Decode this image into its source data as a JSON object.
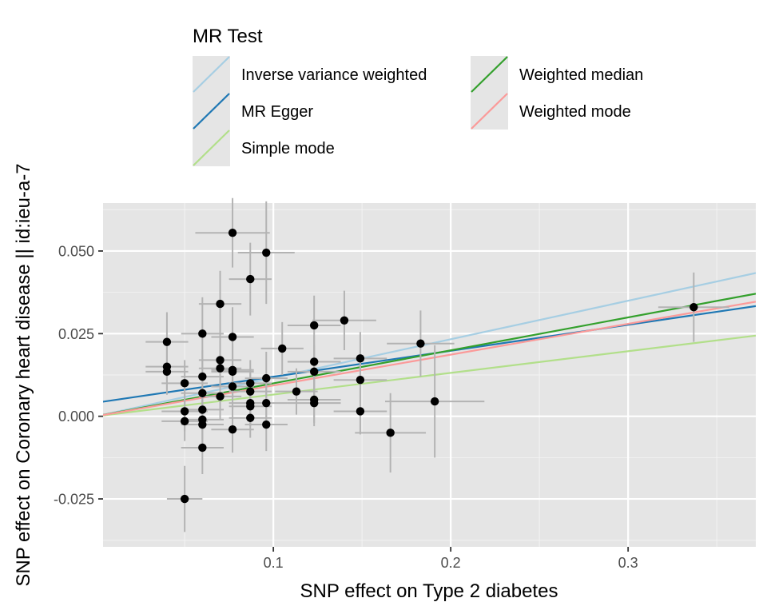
{
  "chart_data": {
    "type": "scatter",
    "xlabel": "SNP effect on Type 2 diabetes",
    "ylabel": "SNP effect on Coronary heart disease || id:ieu-a-7",
    "xlim": [
      0.004,
      0.372
    ],
    "ylim": [
      -0.0395,
      0.0645
    ],
    "x_ticks": [
      0.1,
      0.2,
      0.3
    ],
    "x_tick_labels": [
      "0.1",
      "0.2",
      "0.3"
    ],
    "y_ticks": [
      -0.025,
      0.0,
      0.025,
      0.05
    ],
    "y_tick_labels": [
      "-0.025",
      "0.000",
      "0.025",
      "0.050"
    ],
    "grid": true,
    "legend": {
      "title": "MR Test",
      "position": "top",
      "entries": [
        {
          "name": "Inverse variance weighted",
          "color": "#a6cee3"
        },
        {
          "name": "MR Egger",
          "color": "#1f78b4"
        },
        {
          "name": "Simple mode",
          "color": "#b2df8a"
        },
        {
          "name": "Weighted median",
          "color": "#33a02c"
        },
        {
          "name": "Weighted mode",
          "color": "#fb9a99"
        }
      ]
    },
    "lines": [
      {
        "name": "Inverse variance weighted",
        "color": "#a6cee3",
        "intercept": 0.0,
        "slope": 0.1165
      },
      {
        "name": "MR Egger",
        "color": "#1f78b4",
        "intercept": 0.0041,
        "slope": 0.0786
      },
      {
        "name": "Simple mode",
        "color": "#b2df8a",
        "intercept": 0.0,
        "slope": 0.0656
      },
      {
        "name": "Weighted median",
        "color": "#33a02c",
        "intercept": 0.0,
        "slope": 0.0997
      },
      {
        "name": "Weighted mode",
        "color": "#fb9a99",
        "intercept": 0.0,
        "slope": 0.0932
      }
    ],
    "points": [
      {
        "x": 0.04,
        "y": 0.0225,
        "xerr": 0.012,
        "yerr": 0.009
      },
      {
        "x": 0.04,
        "y": 0.015,
        "xerr": 0.012,
        "yerr": 0.007
      },
      {
        "x": 0.04,
        "y": 0.0135,
        "xerr": 0.012,
        "yerr": 0.007
      },
      {
        "x": 0.05,
        "y": 0.01,
        "xerr": 0.013,
        "yerr": 0.007
      },
      {
        "x": 0.05,
        "y": 0.0015,
        "xerr": 0.013,
        "yerr": 0.006
      },
      {
        "x": 0.05,
        "y": -0.0015,
        "xerr": 0.013,
        "yerr": 0.006
      },
      {
        "x": 0.05,
        "y": -0.025,
        "xerr": 0.01,
        "yerr": 0.01
      },
      {
        "x": 0.06,
        "y": 0.025,
        "xerr": 0.012,
        "yerr": 0.011
      },
      {
        "x": 0.06,
        "y": 0.012,
        "xerr": 0.012,
        "yerr": 0.008
      },
      {
        "x": 0.06,
        "y": 0.007,
        "xerr": 0.012,
        "yerr": 0.006
      },
      {
        "x": 0.06,
        "y": 0.002,
        "xerr": 0.012,
        "yerr": 0.006
      },
      {
        "x": 0.06,
        "y": -0.001,
        "xerr": 0.012,
        "yerr": 0.006
      },
      {
        "x": 0.06,
        "y": -0.0025,
        "xerr": 0.012,
        "yerr": 0.006
      },
      {
        "x": 0.06,
        "y": -0.0095,
        "xerr": 0.012,
        "yerr": 0.008
      },
      {
        "x": 0.07,
        "y": 0.034,
        "xerr": 0.012,
        "yerr": 0.01
      },
      {
        "x": 0.07,
        "y": 0.017,
        "xerr": 0.012,
        "yerr": 0.008
      },
      {
        "x": 0.07,
        "y": 0.0145,
        "xerr": 0.012,
        "yerr": 0.008
      },
      {
        "x": 0.07,
        "y": 0.006,
        "xerr": 0.012,
        "yerr": 0.007
      },
      {
        "x": 0.077,
        "y": 0.0555,
        "xerr": 0.021,
        "yerr": 0.0105
      },
      {
        "x": 0.077,
        "y": 0.024,
        "xerr": 0.012,
        "yerr": 0.009
      },
      {
        "x": 0.077,
        "y": 0.014,
        "xerr": 0.012,
        "yerr": 0.008
      },
      {
        "x": 0.077,
        "y": 0.0135,
        "xerr": 0.012,
        "yerr": 0.008
      },
      {
        "x": 0.077,
        "y": 0.009,
        "xerr": 0.012,
        "yerr": 0.007
      },
      {
        "x": 0.077,
        "y": -0.004,
        "xerr": 0.012,
        "yerr": 0.007
      },
      {
        "x": 0.087,
        "y": 0.0415,
        "xerr": 0.012,
        "yerr": 0.011
      },
      {
        "x": 0.087,
        "y": 0.01,
        "xerr": 0.012,
        "yerr": 0.007
      },
      {
        "x": 0.087,
        "y": 0.0075,
        "xerr": 0.012,
        "yerr": 0.007
      },
      {
        "x": 0.087,
        "y": 0.004,
        "xerr": 0.012,
        "yerr": 0.007
      },
      {
        "x": 0.087,
        "y": 0.003,
        "xerr": 0.012,
        "yerr": 0.006
      },
      {
        "x": 0.087,
        "y": -0.0005,
        "xerr": 0.012,
        "yerr": 0.006
      },
      {
        "x": 0.096,
        "y": 0.0495,
        "xerr": 0.016,
        "yerr": 0.0155
      },
      {
        "x": 0.096,
        "y": 0.0115,
        "xerr": 0.012,
        "yerr": 0.008
      },
      {
        "x": 0.096,
        "y": 0.004,
        "xerr": 0.012,
        "yerr": 0.007
      },
      {
        "x": 0.096,
        "y": -0.0025,
        "xerr": 0.012,
        "yerr": 0.008
      },
      {
        "x": 0.105,
        "y": 0.0205,
        "xerr": 0.012,
        "yerr": 0.008
      },
      {
        "x": 0.113,
        "y": 0.0075,
        "xerr": 0.012,
        "yerr": 0.007
      },
      {
        "x": 0.123,
        "y": 0.0275,
        "xerr": 0.015,
        "yerr": 0.009
      },
      {
        "x": 0.123,
        "y": 0.0165,
        "xerr": 0.015,
        "yerr": 0.008
      },
      {
        "x": 0.123,
        "y": 0.0135,
        "xerr": 0.015,
        "yerr": 0.008
      },
      {
        "x": 0.123,
        "y": 0.005,
        "xerr": 0.015,
        "yerr": 0.007
      },
      {
        "x": 0.123,
        "y": 0.004,
        "xerr": 0.015,
        "yerr": 0.007
      },
      {
        "x": 0.14,
        "y": 0.029,
        "xerr": 0.018,
        "yerr": 0.009
      },
      {
        "x": 0.149,
        "y": 0.0175,
        "xerr": 0.015,
        "yerr": 0.008
      },
      {
        "x": 0.149,
        "y": 0.011,
        "xerr": 0.015,
        "yerr": 0.007
      },
      {
        "x": 0.149,
        "y": 0.0015,
        "xerr": 0.015,
        "yerr": 0.007
      },
      {
        "x": 0.166,
        "y": -0.005,
        "xerr": 0.02,
        "yerr": 0.012
      },
      {
        "x": 0.183,
        "y": 0.022,
        "xerr": 0.019,
        "yerr": 0.01
      },
      {
        "x": 0.191,
        "y": 0.0045,
        "xerr": 0.028,
        "yerr": 0.017
      },
      {
        "x": 0.337,
        "y": 0.033,
        "xerr": 0.02,
        "yerr": 0.0105
      }
    ]
  }
}
